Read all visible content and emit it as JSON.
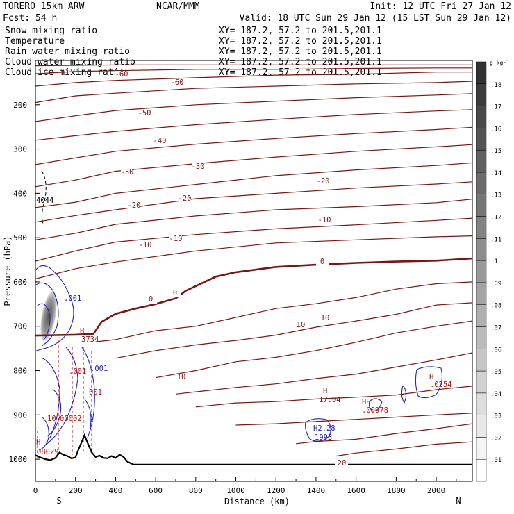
{
  "header": {
    "model": "TORERO  15km ARW",
    "center": "NCAR/MMM",
    "init": "Init: 12 UTC Fri 27 Jan 12",
    "fcst": "Fcst:   54 h",
    "valid": "Valid: 18 UTC Sun 29 Jan 12 (15 LST Sun 29 Jan 12)"
  },
  "legend": [
    {
      "label": "Snow mixing ratio",
      "xy": "XY= 187.2, 57.2 to 201.5,201.1",
      "color": "#000000"
    },
    {
      "label": "Temperature",
      "xy": "XY= 187.2, 57.2 to 201.5,201.1",
      "color": "#8b1010"
    },
    {
      "label": "Rain water mixing ratio",
      "xy": "XY= 187.2, 57.2 to 201.5,201.1",
      "color": "#cc1111"
    },
    {
      "label": "Cloud water mixing ratio",
      "xy": "XY= 187.2, 57.2 to 201.5,201.1",
      "color": "#1a1aa8"
    },
    {
      "label": "Cloud ice mixing ratio",
      "xy": "XY= 187.2, 57.2 to 201.5,201.1",
      "color": "#000000"
    }
  ],
  "chart_data": {
    "type": "contour",
    "xlabel": "Distance (km)",
    "ylabel": "Pressure (hPa)",
    "xlim": [
      0,
      2180
    ],
    "ylim": [
      1050,
      100
    ],
    "x_ticks": [
      "0",
      "200",
      "400",
      "600",
      "800",
      "1000",
      "1200",
      "1400",
      "1600",
      "1800",
      "2000"
    ],
    "y_ticks": [
      "200",
      "300",
      "400",
      "500",
      "600",
      "700",
      "800",
      "900",
      "1000"
    ],
    "end_labels": {
      "left": "S",
      "right": "N"
    },
    "colorbar": {
      "unit": "g kg⁻¹",
      "levels": [
        ".01",
        ".02",
        ".03",
        ".04",
        ".05",
        ".06",
        ".07",
        ".08",
        ".09",
        ".1",
        ".11",
        ".12",
        ".13",
        ".14",
        ".15",
        ".16",
        ".17",
        ".18"
      ]
    },
    "temperature_labels": [
      "-60",
      "-60",
      "-50",
      "-40",
      "-30",
      "-30",
      "-20",
      "-20",
      "-20",
      "-10",
      "-10",
      "-10",
      "0",
      "0",
      "0",
      "10",
      "10",
      "10",
      "20"
    ],
    "field_annotations": [
      "4044",
      ".001",
      "3734",
      "H",
      ".001",
      ".001",
      "001",
      "10",
      "00002",
      "H",
      "08029",
      "H",
      "17.04",
      "HH",
      ".00978",
      "H2.28",
      "1993",
      "H",
      ".0254"
    ],
    "terrain": {
      "x": [
        0,
        25,
        50,
        75,
        100,
        120,
        140,
        160,
        180,
        200,
        215,
        230,
        245,
        260,
        280,
        300,
        320,
        340,
        360,
        380,
        400,
        420,
        440,
        460,
        490,
        800,
        1200,
        1600,
        2180
      ],
      "p": [
        991,
        996,
        1000,
        1002,
        997,
        985,
        990,
        993,
        998,
        996,
        978,
        962,
        946,
        963,
        984,
        995,
        992,
        997,
        998,
        993,
        997,
        990,
        995,
        1006,
        1012,
        1012,
        1012,
        1012,
        1012
      ]
    },
    "freezing_level": {
      "x": [
        0,
        100,
        200,
        290,
        300,
        330,
        400,
        500,
        600,
        700,
        750,
        900,
        1000,
        1200,
        1400,
        1600,
        1800,
        2000,
        2180
      ],
      "p": [
        721,
        720,
        719,
        717,
        710,
        690,
        672,
        660,
        650,
        637,
        620,
        588,
        578,
        566,
        561,
        557,
        554,
        552,
        547
      ]
    },
    "isotherms": [
      {
        "x": [
          0,
          200,
          400,
          800,
          1200,
          1600,
          2000,
          2180
        ],
        "p": [
          112,
          111,
          110,
          110,
          110,
          110,
          110,
          110
        ]
      },
      {
        "x": [
          0,
          200,
          400,
          800,
          1200,
          1600,
          2000,
          2180
        ],
        "p": [
          130,
          125,
          123,
          120,
          120,
          118,
          117,
          117
        ]
      },
      {
        "x": [
          0,
          200,
          400,
          800,
          1200,
          1600,
          2000,
          2180
        ],
        "p": [
          158,
          150,
          145,
          139,
          133,
          131,
          126,
          126
        ]
      },
      {
        "x": [
          0,
          200,
          400,
          800,
          1200,
          1600,
          2000,
          2180
        ],
        "p": [
          195,
          180,
          174,
          163,
          158,
          153,
          150,
          147
        ]
      },
      {
        "x": [
          0,
          200,
          400,
          800,
          1200,
          1600,
          2000,
          2180
        ],
        "p": [
          238,
          225,
          213,
          200,
          192,
          184,
          178,
          175
        ]
      },
      {
        "x": [
          0,
          200,
          400,
          800,
          1200,
          1600,
          2000,
          2180
        ],
        "p": [
          280,
          270,
          260,
          245,
          233,
          222,
          214,
          211
        ]
      },
      {
        "x": [
          0,
          200,
          400,
          800,
          1200,
          1600,
          2000,
          2180
        ],
        "p": [
          335,
          320,
          305,
          289,
          276,
          265,
          256,
          251
        ]
      },
      {
        "x": [
          0,
          200,
          400,
          800,
          1200,
          1600,
          2000,
          2180
        ],
        "p": [
          385,
          370,
          350,
          333,
          318,
          305,
          295,
          290
        ]
      },
      {
        "x": [
          0,
          200,
          400,
          800,
          1200,
          1600,
          2000,
          2180
        ],
        "p": [
          432,
          420,
          400,
          380,
          360,
          347,
          337,
          331
        ]
      },
      {
        "x": [
          0,
          200,
          400,
          800,
          1200,
          1600,
          2000,
          2180
        ],
        "p": [
          465,
          450,
          437,
          412,
          400,
          388,
          379,
          374
        ]
      },
      {
        "x": [
          0,
          200,
          400,
          800,
          1200,
          1600,
          2000,
          2180
        ],
        "p": [
          505,
          490,
          470,
          451,
          437,
          430,
          421,
          413
        ]
      },
      {
        "x": [
          0,
          200,
          400,
          800,
          1200,
          1600,
          2000,
          2180
        ],
        "p": [
          553,
          530,
          510,
          493,
          480,
          471,
          461,
          456
        ]
      },
      {
        "x": [
          0,
          200,
          400,
          800,
          1200,
          1600,
          2000,
          2180
        ],
        "p": [
          593,
          570,
          555,
          530,
          512,
          505,
          498,
          496
        ]
      },
      {
        "x": [
          300,
          400,
          600,
          800,
          1000,
          1200,
          1400,
          1600,
          1800,
          2000,
          2180
        ],
        "p": [
          735,
          730,
          710,
          700,
          680,
          660,
          649,
          635,
          616,
          604,
          600
        ]
      },
      {
        "x": [
          400,
          600,
          800,
          1000,
          1200,
          1400,
          1600,
          1800,
          2000,
          2180
        ],
        "p": [
          772,
          755,
          742,
          732,
          720,
          702,
          688,
          673,
          652,
          647
        ]
      },
      {
        "x": [
          600,
          800,
          1000,
          1200,
          1400,
          1600,
          1800,
          2000,
          2180
        ],
        "p": [
          816,
          800,
          780,
          770,
          755,
          736,
          715,
          700,
          688
        ]
      },
      {
        "x": [
          700,
          800,
          1000,
          1200,
          1400,
          1600,
          1800,
          2000,
          2180
        ],
        "p": [
          853,
          848,
          838,
          830,
          818,
          808,
          792,
          776,
          760
        ]
      },
      {
        "x": [
          800,
          1000,
          1200,
          1400,
          1600,
          1800,
          2000,
          2180
        ],
        "p": [
          882,
          873,
          870,
          864,
          860,
          855,
          843,
          835
        ]
      },
      {
        "x": [
          1000,
          1200,
          1400,
          1600,
          1800,
          2000,
          2180
        ],
        "p": [
          923,
          920,
          915,
          910,
          905,
          900,
          896
        ]
      },
      {
        "x": [
          1300,
          1400,
          1600,
          1800,
          2000,
          2180
        ],
        "p": [
          965,
          960,
          955,
          942,
          931,
          920
        ]
      },
      {
        "x": [
          1500,
          1600,
          1800,
          2000,
          2180
        ],
        "p": [
          993,
          986,
          977,
          966,
          961
        ]
      }
    ]
  }
}
